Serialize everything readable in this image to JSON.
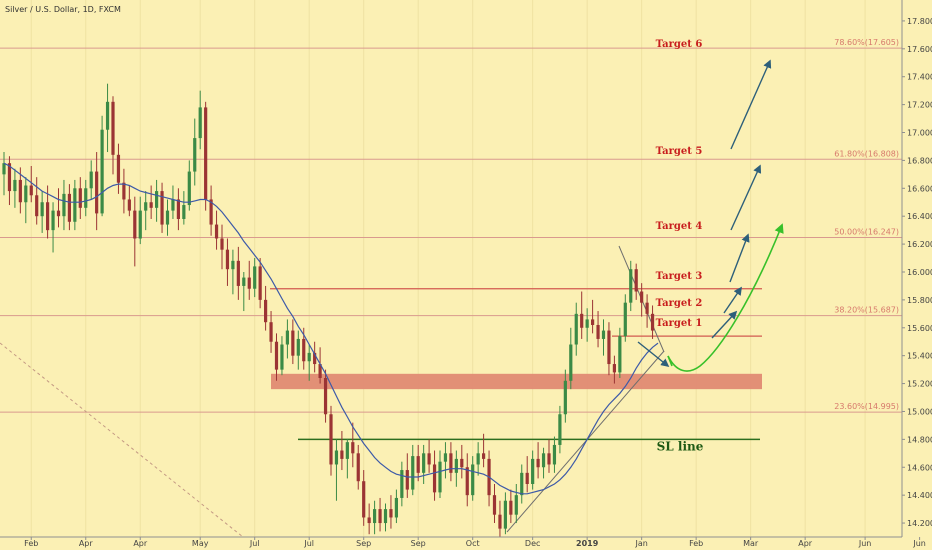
{
  "chart_data": {
    "type": "candlestick",
    "title": "Silver / U.S. Dollar, 1D, FXCM",
    "y_axis": {
      "ylim": [
        14.1,
        17.95
      ],
      "ticks": [
        "14.200",
        "14.400",
        "14.600",
        "14.800",
        "15.000",
        "15.200",
        "15.400",
        "15.600",
        "15.800",
        "16.000",
        "16.200",
        "16.400",
        "16.600",
        "16.800",
        "17.000",
        "17.200",
        "17.400",
        "17.600",
        "17.800"
      ],
      "side": "right"
    },
    "x_axis": {
      "ticks": [
        {
          "label": "Feb",
          "bar": 5
        },
        {
          "label": "Apr",
          "bar": 15
        },
        {
          "label": "Apr",
          "bar": 25
        },
        {
          "label": "May",
          "bar": 36
        },
        {
          "label": "Jul",
          "bar": 46
        },
        {
          "label": "Jul",
          "bar": 56
        },
        {
          "label": "Sep",
          "bar": 66
        },
        {
          "label": "Sep",
          "bar": 76
        },
        {
          "label": "Oct",
          "bar": 86
        },
        {
          "label": "Dec",
          "bar": 97
        },
        {
          "label": "2019",
          "bar": 107,
          "bold": true
        },
        {
          "label": "Jan",
          "bar": 117
        },
        {
          "label": "Feb",
          "bar": 127
        },
        {
          "label": "Mar",
          "bar": 137
        },
        {
          "label": "Apr",
          "bar": 147
        },
        {
          "label": "Jun",
          "bar": 158
        },
        {
          "label": "Jun",
          "bar": 168
        }
      ]
    },
    "candles": [
      {
        "o": 16.7,
        "h": 16.86,
        "l": 16.55,
        "c": 16.78
      },
      {
        "o": 16.78,
        "h": 16.83,
        "l": 16.48,
        "c": 16.58
      },
      {
        "o": 16.58,
        "h": 16.74,
        "l": 16.46,
        "c": 16.66
      },
      {
        "o": 16.66,
        "h": 16.75,
        "l": 16.42,
        "c": 16.5
      },
      {
        "o": 16.5,
        "h": 16.68,
        "l": 16.35,
        "c": 16.62
      },
      {
        "o": 16.62,
        "h": 16.76,
        "l": 16.5,
        "c": 16.55
      },
      {
        "o": 16.55,
        "h": 16.68,
        "l": 16.34,
        "c": 16.4
      },
      {
        "o": 16.4,
        "h": 16.58,
        "l": 16.28,
        "c": 16.5
      },
      {
        "o": 16.5,
        "h": 16.62,
        "l": 16.24,
        "c": 16.3
      },
      {
        "o": 16.3,
        "h": 16.5,
        "l": 16.14,
        "c": 16.44
      },
      {
        "o": 16.44,
        "h": 16.6,
        "l": 16.32,
        "c": 16.4
      },
      {
        "o": 16.4,
        "h": 16.66,
        "l": 16.3,
        "c": 16.56
      },
      {
        "o": 16.56,
        "h": 16.63,
        "l": 16.3,
        "c": 16.36
      },
      {
        "o": 16.36,
        "h": 16.66,
        "l": 16.3,
        "c": 16.6
      },
      {
        "o": 16.6,
        "h": 16.68,
        "l": 16.38,
        "c": 16.46
      },
      {
        "o": 16.46,
        "h": 16.66,
        "l": 16.4,
        "c": 16.6
      },
      {
        "o": 16.6,
        "h": 16.8,
        "l": 16.52,
        "c": 16.72
      },
      {
        "o": 16.72,
        "h": 16.86,
        "l": 16.3,
        "c": 16.42
      },
      {
        "o": 16.42,
        "h": 17.12,
        "l": 16.4,
        "c": 17.02
      },
      {
        "o": 17.02,
        "h": 17.35,
        "l": 16.86,
        "c": 17.22
      },
      {
        "o": 17.22,
        "h": 17.26,
        "l": 16.7,
        "c": 16.84
      },
      {
        "o": 16.84,
        "h": 16.92,
        "l": 16.56,
        "c": 16.64
      },
      {
        "o": 16.64,
        "h": 16.74,
        "l": 16.42,
        "c": 16.52
      },
      {
        "o": 16.52,
        "h": 16.62,
        "l": 16.4,
        "c": 16.44
      },
      {
        "o": 16.44,
        "h": 16.54,
        "l": 16.04,
        "c": 16.24
      },
      {
        "o": 16.24,
        "h": 16.54,
        "l": 16.2,
        "c": 16.44
      },
      {
        "o": 16.44,
        "h": 16.58,
        "l": 16.3,
        "c": 16.5
      },
      {
        "o": 16.5,
        "h": 16.62,
        "l": 16.38,
        "c": 16.46
      },
      {
        "o": 16.46,
        "h": 16.66,
        "l": 16.36,
        "c": 16.58
      },
      {
        "o": 16.58,
        "h": 16.64,
        "l": 16.28,
        "c": 16.34
      },
      {
        "o": 16.34,
        "h": 16.52,
        "l": 16.26,
        "c": 16.44
      },
      {
        "o": 16.44,
        "h": 16.62,
        "l": 16.38,
        "c": 16.52
      },
      {
        "o": 16.52,
        "h": 16.6,
        "l": 16.3,
        "c": 16.38
      },
      {
        "o": 16.38,
        "h": 16.58,
        "l": 16.34,
        "c": 16.48
      },
      {
        "o": 16.48,
        "h": 16.8,
        "l": 16.44,
        "c": 16.72
      },
      {
        "o": 16.72,
        "h": 17.1,
        "l": 16.62,
        "c": 16.96
      },
      {
        "o": 16.96,
        "h": 17.3,
        "l": 16.88,
        "c": 17.18
      },
      {
        "o": 17.18,
        "h": 17.22,
        "l": 16.44,
        "c": 16.52
      },
      {
        "o": 16.52,
        "h": 16.62,
        "l": 16.26,
        "c": 16.34
      },
      {
        "o": 16.34,
        "h": 16.44,
        "l": 16.16,
        "c": 16.24
      },
      {
        "o": 16.24,
        "h": 16.34,
        "l": 16.02,
        "c": 16.16
      },
      {
        "o": 16.16,
        "h": 16.24,
        "l": 15.9,
        "c": 16.02
      },
      {
        "o": 16.02,
        "h": 16.16,
        "l": 15.84,
        "c": 16.08
      },
      {
        "o": 16.08,
        "h": 16.18,
        "l": 15.8,
        "c": 15.9
      },
      {
        "o": 15.9,
        "h": 16.0,
        "l": 15.72,
        "c": 15.96
      },
      {
        "o": 15.96,
        "h": 16.08,
        "l": 15.8,
        "c": 15.88
      },
      {
        "o": 15.88,
        "h": 16.1,
        "l": 15.82,
        "c": 16.04
      },
      {
        "o": 16.04,
        "h": 16.1,
        "l": 15.74,
        "c": 15.8
      },
      {
        "o": 15.8,
        "h": 15.9,
        "l": 15.58,
        "c": 15.64
      },
      {
        "o": 15.64,
        "h": 15.72,
        "l": 15.42,
        "c": 15.5
      },
      {
        "o": 15.5,
        "h": 15.56,
        "l": 15.22,
        "c": 15.3
      },
      {
        "o": 15.3,
        "h": 15.54,
        "l": 15.26,
        "c": 15.48
      },
      {
        "o": 15.48,
        "h": 15.66,
        "l": 15.38,
        "c": 15.58
      },
      {
        "o": 15.58,
        "h": 15.66,
        "l": 15.34,
        "c": 15.4
      },
      {
        "o": 15.4,
        "h": 15.58,
        "l": 15.3,
        "c": 15.52
      },
      {
        "o": 15.52,
        "h": 15.6,
        "l": 15.3,
        "c": 15.36
      },
      {
        "o": 15.36,
        "h": 15.48,
        "l": 15.22,
        "c": 15.42
      },
      {
        "o": 15.42,
        "h": 15.5,
        "l": 15.28,
        "c": 15.34
      },
      {
        "o": 15.34,
        "h": 15.46,
        "l": 15.2,
        "c": 15.24
      },
      {
        "o": 15.24,
        "h": 15.3,
        "l": 14.92,
        "c": 14.98
      },
      {
        "o": 14.98,
        "h": 15.04,
        "l": 14.54,
        "c": 14.62
      },
      {
        "o": 14.62,
        "h": 14.8,
        "l": 14.36,
        "c": 14.72
      },
      {
        "o": 14.72,
        "h": 14.86,
        "l": 14.58,
        "c": 14.66
      },
      {
        "o": 14.66,
        "h": 14.8,
        "l": 14.52,
        "c": 14.78
      },
      {
        "o": 14.78,
        "h": 14.92,
        "l": 14.6,
        "c": 14.7
      },
      {
        "o": 14.7,
        "h": 14.76,
        "l": 14.44,
        "c": 14.5
      },
      {
        "o": 14.5,
        "h": 14.58,
        "l": 14.18,
        "c": 14.24
      },
      {
        "o": 14.24,
        "h": 14.34,
        "l": 14.12,
        "c": 14.2
      },
      {
        "o": 14.2,
        "h": 14.36,
        "l": 14.12,
        "c": 14.3
      },
      {
        "o": 14.3,
        "h": 14.38,
        "l": 14.14,
        "c": 14.2
      },
      {
        "o": 14.2,
        "h": 14.34,
        "l": 14.14,
        "c": 14.3
      },
      {
        "o": 14.3,
        "h": 14.4,
        "l": 14.16,
        "c": 14.24
      },
      {
        "o": 14.24,
        "h": 14.44,
        "l": 14.2,
        "c": 14.38
      },
      {
        "o": 14.38,
        "h": 14.64,
        "l": 14.32,
        "c": 14.58
      },
      {
        "o": 14.58,
        "h": 14.7,
        "l": 14.38,
        "c": 14.44
      },
      {
        "o": 14.44,
        "h": 14.76,
        "l": 14.4,
        "c": 14.68
      },
      {
        "o": 14.68,
        "h": 14.76,
        "l": 14.5,
        "c": 14.56
      },
      {
        "o": 14.56,
        "h": 14.76,
        "l": 14.48,
        "c": 14.7
      },
      {
        "o": 14.7,
        "h": 14.8,
        "l": 14.56,
        "c": 14.62
      },
      {
        "o": 14.62,
        "h": 14.72,
        "l": 14.36,
        "c": 14.42
      },
      {
        "o": 14.42,
        "h": 14.72,
        "l": 14.38,
        "c": 14.64
      },
      {
        "o": 14.64,
        "h": 14.78,
        "l": 14.52,
        "c": 14.7
      },
      {
        "o": 14.7,
        "h": 14.78,
        "l": 14.5,
        "c": 14.56
      },
      {
        "o": 14.56,
        "h": 14.72,
        "l": 14.46,
        "c": 14.66
      },
      {
        "o": 14.66,
        "h": 14.76,
        "l": 14.52,
        "c": 14.6
      },
      {
        "o": 14.6,
        "h": 14.7,
        "l": 14.32,
        "c": 14.4
      },
      {
        "o": 14.4,
        "h": 14.68,
        "l": 14.36,
        "c": 14.62
      },
      {
        "o": 14.62,
        "h": 14.78,
        "l": 14.54,
        "c": 14.7
      },
      {
        "o": 14.7,
        "h": 14.84,
        "l": 14.6,
        "c": 14.66
      },
      {
        "o": 14.66,
        "h": 14.72,
        "l": 14.32,
        "c": 14.4
      },
      {
        "o": 14.4,
        "h": 14.48,
        "l": 14.2,
        "c": 14.26
      },
      {
        "o": 14.26,
        "h": 14.36,
        "l": 14.1,
        "c": 14.16
      },
      {
        "o": 14.16,
        "h": 14.42,
        "l": 14.12,
        "c": 14.36
      },
      {
        "o": 14.36,
        "h": 14.44,
        "l": 14.2,
        "c": 14.26
      },
      {
        "o": 14.26,
        "h": 14.48,
        "l": 14.2,
        "c": 14.4
      },
      {
        "o": 14.4,
        "h": 14.62,
        "l": 14.34,
        "c": 14.56
      },
      {
        "o": 14.56,
        "h": 14.68,
        "l": 14.42,
        "c": 14.48
      },
      {
        "o": 14.48,
        "h": 14.72,
        "l": 14.44,
        "c": 14.66
      },
      {
        "o": 14.66,
        "h": 14.78,
        "l": 14.52,
        "c": 14.6
      },
      {
        "o": 14.6,
        "h": 14.74,
        "l": 14.52,
        "c": 14.7
      },
      {
        "o": 14.7,
        "h": 14.8,
        "l": 14.56,
        "c": 14.62
      },
      {
        "o": 14.62,
        "h": 14.82,
        "l": 14.56,
        "c": 14.76
      },
      {
        "o": 14.76,
        "h": 15.04,
        "l": 14.7,
        "c": 14.98
      },
      {
        "o": 14.98,
        "h": 15.3,
        "l": 14.92,
        "c": 15.22
      },
      {
        "o": 15.22,
        "h": 15.6,
        "l": 15.16,
        "c": 15.48
      },
      {
        "o": 15.48,
        "h": 15.78,
        "l": 15.4,
        "c": 15.7
      },
      {
        "o": 15.7,
        "h": 15.86,
        "l": 15.52,
        "c": 15.6
      },
      {
        "o": 15.6,
        "h": 15.74,
        "l": 15.5,
        "c": 15.66
      },
      {
        "o": 15.66,
        "h": 15.8,
        "l": 15.56,
        "c": 15.62
      },
      {
        "o": 15.62,
        "h": 15.72,
        "l": 15.46,
        "c": 15.52
      },
      {
        "o": 15.52,
        "h": 15.66,
        "l": 15.4,
        "c": 15.58
      },
      {
        "o": 15.58,
        "h": 15.64,
        "l": 15.26,
        "c": 15.34
      },
      {
        "o": 15.34,
        "h": 15.4,
        "l": 15.2,
        "c": 15.28
      },
      {
        "o": 15.28,
        "h": 15.6,
        "l": 15.24,
        "c": 15.54
      },
      {
        "o": 15.54,
        "h": 15.84,
        "l": 15.5,
        "c": 15.78
      },
      {
        "o": 15.78,
        "h": 16.08,
        "l": 15.72,
        "c": 16.02
      },
      {
        "o": 16.02,
        "h": 16.06,
        "l": 15.8,
        "c": 15.86
      },
      {
        "o": 15.86,
        "h": 15.92,
        "l": 15.68,
        "c": 15.78
      },
      {
        "o": 15.78,
        "h": 15.84,
        "l": 15.6,
        "c": 15.7
      },
      {
        "o": 15.7,
        "h": 15.76,
        "l": 15.52,
        "c": 15.58
      }
    ],
    "moving_average": {
      "color": "#3d5aa8",
      "values": [
        16.78,
        16.76,
        16.73,
        16.7,
        16.67,
        16.64,
        16.61,
        16.58,
        16.56,
        16.54,
        16.52,
        16.51,
        16.5,
        16.5,
        16.5,
        16.51,
        16.52,
        16.54,
        16.57,
        16.6,
        16.62,
        16.63,
        16.63,
        16.62,
        16.6,
        16.58,
        16.57,
        16.56,
        16.55,
        16.54,
        16.53,
        16.52,
        16.51,
        16.5,
        16.5,
        16.51,
        16.52,
        16.52,
        16.5,
        16.47,
        16.43,
        16.38,
        16.33,
        16.28,
        16.22,
        16.17,
        16.12,
        16.07,
        16.01,
        15.95,
        15.88,
        15.81,
        15.74,
        15.68,
        15.61,
        15.55,
        15.48,
        15.41,
        15.34,
        15.27,
        15.19,
        15.11,
        15.03,
        14.96,
        14.89,
        14.83,
        14.77,
        14.72,
        14.67,
        14.63,
        14.6,
        14.57,
        14.55,
        14.54,
        14.53,
        14.53,
        14.53,
        14.54,
        14.55,
        14.56,
        14.57,
        14.58,
        14.59,
        14.59,
        14.59,
        14.58,
        14.57,
        14.56,
        14.55,
        14.53,
        14.5,
        14.47,
        14.45,
        14.43,
        14.42,
        14.41,
        14.41,
        14.42,
        14.43,
        14.44,
        14.46,
        14.48,
        14.51,
        14.55,
        14.6,
        14.66,
        14.73,
        14.8,
        14.87,
        14.94,
        15.0,
        15.05,
        15.09,
        15.13,
        15.18,
        15.24,
        15.31,
        15.37,
        15.42,
        15.46,
        15.49
      ]
    },
    "fib_levels": [
      {
        "value": 17.605,
        "label": "78.60%(17.605)"
      },
      {
        "value": 16.808,
        "label": "61.80%(16.808)"
      },
      {
        "value": 16.247,
        "label": "50.00%(16.247)"
      },
      {
        "value": 15.687,
        "label": "38.20%(15.687)"
      },
      {
        "value": 14.995,
        "label": "23.60%(14.995)"
      }
    ],
    "targets": [
      {
        "label": "Target 6",
        "value": 17.605
      },
      {
        "label": "Target 5",
        "value": 16.808
      },
      {
        "label": "Target 4",
        "value": 16.247
      },
      {
        "label": "Target 3",
        "value": 15.88
      },
      {
        "label": "Target 2",
        "value": 15.687
      },
      {
        "label": "Target 1",
        "value": 15.54
      }
    ],
    "support_zone": {
      "top": 15.27,
      "bottom": 15.16
    },
    "sl_line": {
      "label": "SL line",
      "value": 14.8
    }
  }
}
